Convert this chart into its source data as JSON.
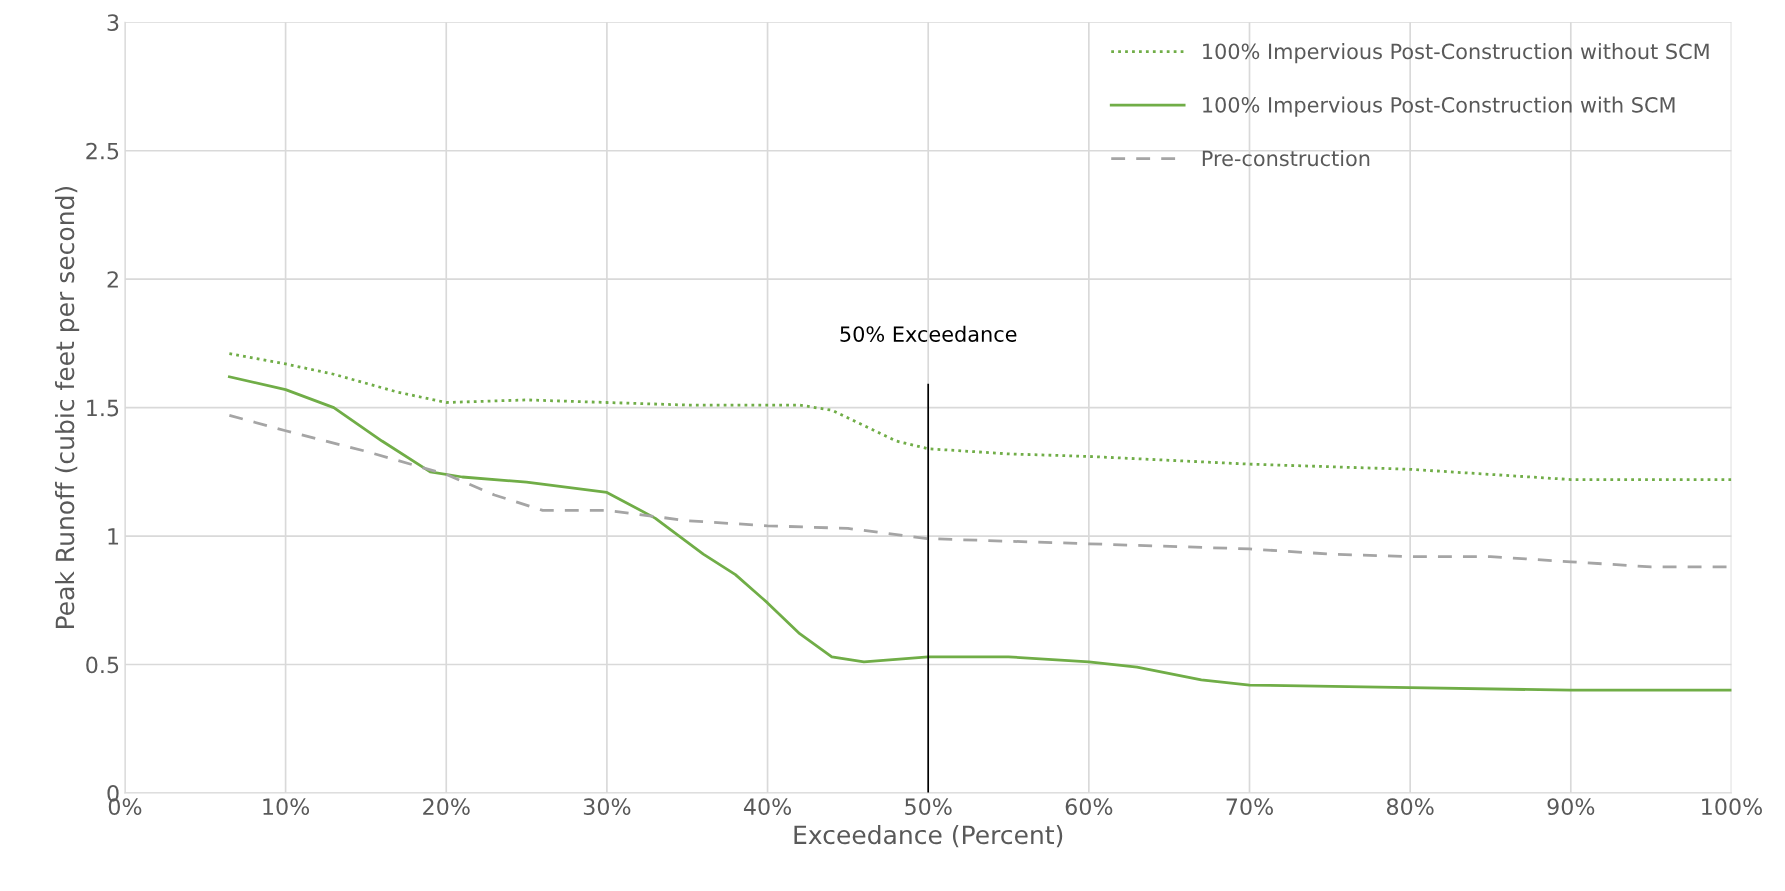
{
  "chart_data": {
    "type": "line",
    "xlabel": "Exceedance (Percent)",
    "ylabel": "Peak Runoff (cubic feet per second)",
    "series": [
      {
        "name": "100% Impervious Post-Construction without SCM",
        "color": "#70ad47",
        "line_style": "dotted",
        "x": [
          6.5,
          10,
          13,
          17,
          20,
          25,
          30,
          35,
          40,
          42,
          44,
          46,
          48,
          50,
          55,
          60,
          70,
          80,
          90,
          100
        ],
        "values": [
          1.71,
          1.67,
          1.63,
          1.56,
          1.52,
          1.53,
          1.52,
          1.51,
          1.51,
          1.51,
          1.49,
          1.43,
          1.37,
          1.34,
          1.32,
          1.31,
          1.28,
          1.26,
          1.22,
          1.22
        ]
      },
      {
        "name": "100% Impervious Post-Construction with SCM",
        "color": "#70ad47",
        "line_style": "solid",
        "x": [
          6.5,
          10,
          13,
          16,
          19,
          21,
          25,
          30,
          33,
          36,
          38,
          40,
          42,
          44,
          46,
          48,
          50,
          55,
          60,
          63,
          67,
          70,
          80,
          90,
          100
        ],
        "values": [
          1.62,
          1.57,
          1.5,
          1.37,
          1.25,
          1.23,
          1.21,
          1.17,
          1.07,
          0.93,
          0.85,
          0.74,
          0.62,
          0.53,
          0.51,
          0.52,
          0.53,
          0.53,
          0.51,
          0.49,
          0.44,
          0.42,
          0.41,
          0.4,
          0.4
        ]
      },
      {
        "name": "Pre-construction",
        "color": "#a5a5a5",
        "line_style": "dashed",
        "x": [
          6.5,
          10,
          15,
          20,
          23,
          26,
          30,
          35,
          40,
          45,
          50,
          60,
          70,
          75,
          80,
          85,
          90,
          95,
          100
        ],
        "values": [
          1.47,
          1.41,
          1.33,
          1.24,
          1.16,
          1.1,
          1.1,
          1.06,
          1.04,
          1.03,
          0.99,
          0.97,
          0.95,
          0.93,
          0.92,
          0.92,
          0.9,
          0.88,
          0.88
        ]
      }
    ],
    "ref_lines": [
      {
        "axis": "x",
        "value": 50,
        "label": "50% Exceedance",
        "color": "#000000"
      }
    ],
    "xlim": [
      0,
      100
    ],
    "xticks": [
      {
        "value": 0,
        "label": "0%"
      },
      {
        "value": 10,
        "label": "10%"
      },
      {
        "value": 20,
        "label": "20%"
      },
      {
        "value": 30,
        "label": "30%"
      },
      {
        "value": 40,
        "label": "40%"
      },
      {
        "value": 50,
        "label": "50%"
      },
      {
        "value": 60,
        "label": "60%"
      },
      {
        "value": 70,
        "label": "70%"
      },
      {
        "value": 80,
        "label": "80%"
      },
      {
        "value": 90,
        "label": "90%"
      },
      {
        "value": 100,
        "label": "100%"
      }
    ],
    "ylim": [
      0,
      3
    ],
    "yticks": [
      0,
      0.5,
      1,
      1.5,
      2,
      2.5,
      3
    ],
    "grid": true,
    "legend": "top right",
    "marker": "none"
  }
}
